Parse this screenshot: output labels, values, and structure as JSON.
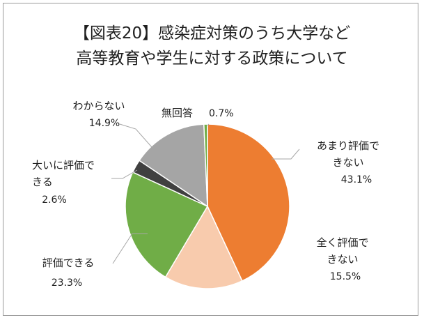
{
  "chart_data": {
    "type": "pie",
    "title_lines": [
      "【図表20】感染症対策のうち大学など",
      "高等教育や学生に対する政策について"
    ],
    "slices": [
      {
        "label": "あまり評価で|きない",
        "value": 43.1,
        "pct": "43.1%",
        "color": "#ED7D31"
      },
      {
        "label": "全く評価で|きない",
        "value": 15.5,
        "pct": "15.5%",
        "color": "#F8CBAD"
      },
      {
        "label": "評価できる",
        "value": 23.3,
        "pct": "23.3%",
        "color": "#70AD47"
      },
      {
        "label": "大いに評価で|きる",
        "value": 2.6,
        "pct": "2.6%",
        "color": "#404040"
      },
      {
        "label": "わからない",
        "value": 14.9,
        "pct": "14.9%",
        "color": "#A5A5A5"
      },
      {
        "label": "無回答",
        "value": 0.7,
        "pct": "0.7%",
        "color": "#70AD47"
      }
    ]
  }
}
